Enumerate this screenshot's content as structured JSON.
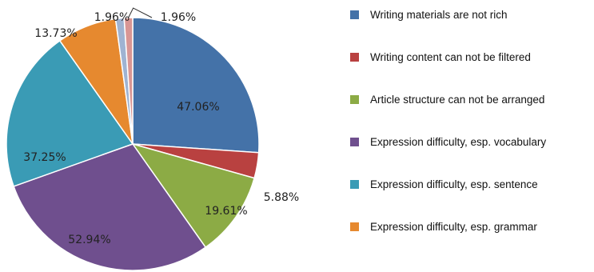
{
  "chart_data": {
    "type": "pie",
    "categories": [
      "Writing materials are not rich",
      "Writing content can not be filtered",
      "Article structure can not be arranged",
      "Expression difficulty, esp. vocabulary",
      "Expression difficulty, esp. sentence",
      "Expression difficulty, esp. grammar",
      "",
      ""
    ],
    "values": [
      47.06,
      5.88,
      19.61,
      52.94,
      37.25,
      13.73,
      1.96,
      1.96
    ],
    "labels": [
      "47.06%",
      "5.88%",
      "19.61%",
      "52.94%",
      "37.25%",
      "13.73%",
      "1.96%",
      "1.96%"
    ],
    "colors": [
      "#4472a8",
      "#b94140",
      "#8cab45",
      "#6f4f8e",
      "#3a9bb5",
      "#e6892f",
      "#9fb3d2",
      "#d99694"
    ],
    "legend_position": "right"
  }
}
